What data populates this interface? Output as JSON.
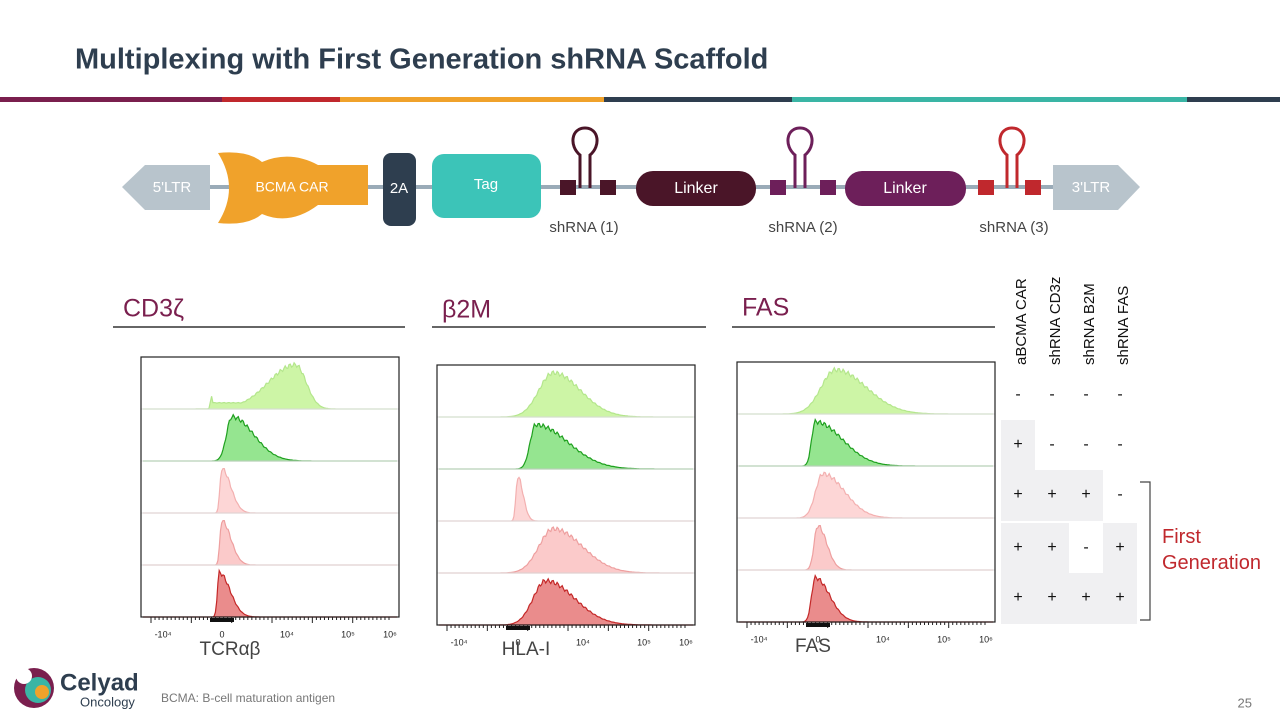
{
  "header": {
    "title": "Multiplexing with First Generation shRNA Scaffold"
  },
  "construct": {
    "ltr5": "5'LTR",
    "car": "BCMA CAR",
    "p2a": "2A",
    "tag": "Tag",
    "linker1": "Linker",
    "linker2": "Linker",
    "ltr3": "3'LTR",
    "shrnas": [
      "shRNA (1)",
      "shRNA (2)",
      "shRNA (3)"
    ]
  },
  "panels": [
    {
      "title": "CD3ζ",
      "xlabel": "TCRαβ"
    },
    {
      "title": "β2M",
      "xlabel": "HLA-I"
    },
    {
      "title": "FAS",
      "xlabel": "FAS"
    }
  ],
  "axis_ticks": [
    "-10⁴",
    "0",
    "10⁴",
    "10⁵",
    "10⁶"
  ],
  "table": {
    "columns": [
      "aBCMA CAR",
      "shRNA CD3z",
      "shRNA B2M",
      "shRNA FAS"
    ],
    "rows": [
      [
        "-",
        "-",
        "-",
        "-"
      ],
      [
        "+",
        "-",
        "-",
        "-"
      ],
      [
        "+",
        "+",
        "+",
        "-"
      ],
      [
        "+",
        "+",
        "-",
        "+"
      ],
      [
        "+",
        "+",
        "+",
        "+"
      ]
    ]
  },
  "bracket_label": "First Generation",
  "footer": {
    "logo_name": "Celyad",
    "logo_sub": "Oncology",
    "footnote": "BCMA: B-cell maturation antigen",
    "page": "25"
  }
}
